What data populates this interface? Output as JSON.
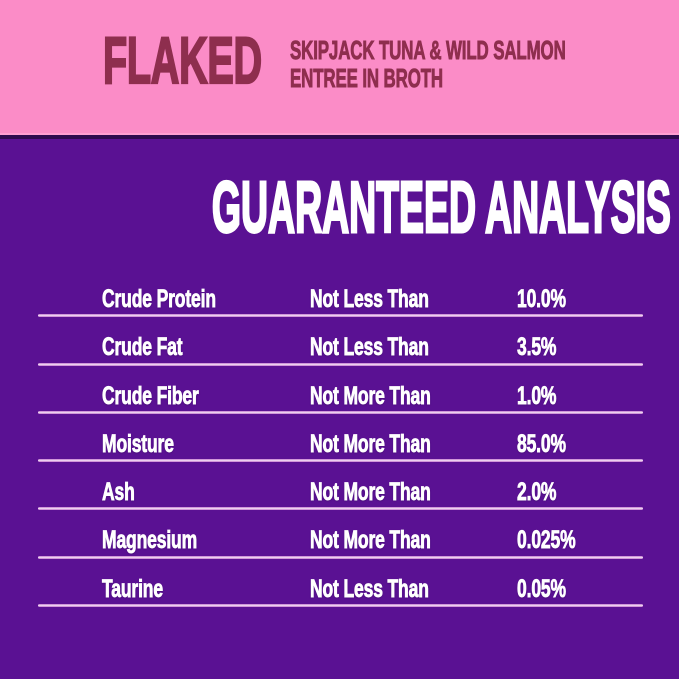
{
  "colors": {
    "header_background": "#fb8cc7",
    "header_text": "#8e2e4e",
    "body_background": "#5a1193",
    "body_text": "#ffffff",
    "divider": "#f4e4f6",
    "section_separator": "#2e0a4f"
  },
  "header": {
    "brand": "FLAKED",
    "product_line1": "SKIPJACK TUNA & WILD SALMON",
    "product_line2": "ENTREE IN BROTH"
  },
  "analysis": {
    "title": "GUARANTEED ANALYSIS",
    "rows": [
      {
        "nutrient": "Crude Protein",
        "qualifier": "Not Less Than",
        "value": "10.0%"
      },
      {
        "nutrient": "Crude Fat",
        "qualifier": "Not Less Than",
        "value": "3.5%"
      },
      {
        "nutrient": "Crude Fiber",
        "qualifier": "Not More Than",
        "value": "1.0%"
      },
      {
        "nutrient": "Moisture",
        "qualifier": "Not More Than",
        "value": "85.0%"
      },
      {
        "nutrient": "Ash",
        "qualifier": "Not More Than",
        "value": "2.0%"
      },
      {
        "nutrient": "Magnesium",
        "qualifier": "Not More Than",
        "value": "0.025%"
      },
      {
        "nutrient": "Taurine",
        "qualifier": "Not Less Than",
        "value": "0.05%"
      }
    ]
  }
}
